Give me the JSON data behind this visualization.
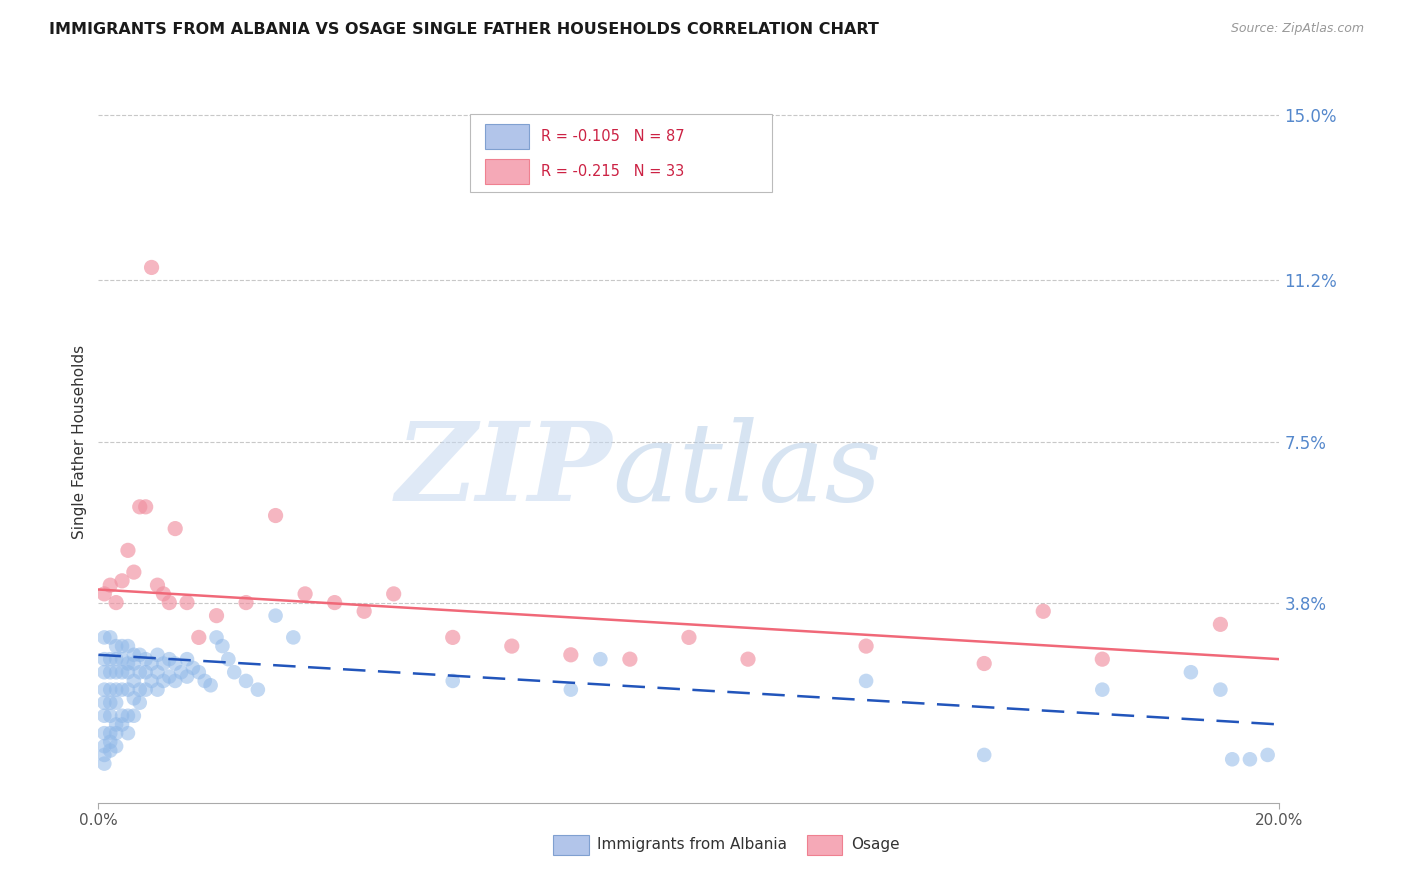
{
  "title": "IMMIGRANTS FROM ALBANIA VS OSAGE SINGLE FATHER HOUSEHOLDS CORRELATION CHART",
  "source": "Source: ZipAtlas.com",
  "ylabel": "Single Father Households",
  "x_min": 0.0,
  "x_max": 0.2,
  "y_min": -0.008,
  "y_max": 0.158,
  "y_ticks": [
    0.038,
    0.075,
    0.112,
    0.15
  ],
  "y_tick_labels": [
    "3.8%",
    "7.5%",
    "11.2%",
    "15.0%"
  ],
  "x_tick_labels": [
    "0.0%",
    "20.0%"
  ],
  "albania_color": "#90b8e8",
  "osage_color": "#f090a0",
  "albania_line_color": "#2255bb",
  "osage_line_color": "#f06878",
  "albania_line_start_y": 0.026,
  "albania_line_end_y": 0.01,
  "osage_line_start_y": 0.041,
  "osage_line_end_y": 0.025,
  "albania_x": [
    0.001,
    0.001,
    0.001,
    0.001,
    0.001,
    0.001,
    0.001,
    0.002,
    0.002,
    0.002,
    0.002,
    0.002,
    0.002,
    0.002,
    0.003,
    0.003,
    0.003,
    0.003,
    0.003,
    0.003,
    0.004,
    0.004,
    0.004,
    0.004,
    0.004,
    0.005,
    0.005,
    0.005,
    0.005,
    0.005,
    0.006,
    0.006,
    0.006,
    0.006,
    0.007,
    0.007,
    0.007,
    0.008,
    0.008,
    0.008,
    0.009,
    0.009,
    0.01,
    0.01,
    0.01,
    0.011,
    0.011,
    0.012,
    0.012,
    0.013,
    0.013,
    0.014,
    0.015,
    0.015,
    0.016,
    0.017,
    0.018,
    0.019,
    0.02,
    0.021,
    0.022,
    0.023,
    0.025,
    0.027,
    0.03,
    0.033,
    0.06,
    0.08,
    0.085,
    0.13,
    0.15,
    0.17,
    0.185,
    0.19,
    0.192,
    0.195,
    0.198,
    0.001,
    0.001,
    0.001,
    0.002,
    0.002,
    0.003,
    0.003,
    0.004,
    0.005,
    0.006,
    0.007
  ],
  "albania_y": [
    0.03,
    0.025,
    0.022,
    0.018,
    0.015,
    0.012,
    0.008,
    0.03,
    0.025,
    0.022,
    0.018,
    0.015,
    0.012,
    0.008,
    0.028,
    0.025,
    0.022,
    0.018,
    0.015,
    0.01,
    0.028,
    0.025,
    0.022,
    0.018,
    0.012,
    0.028,
    0.024,
    0.022,
    0.018,
    0.012,
    0.026,
    0.024,
    0.02,
    0.016,
    0.026,
    0.022,
    0.018,
    0.025,
    0.022,
    0.018,
    0.024,
    0.02,
    0.026,
    0.022,
    0.018,
    0.024,
    0.02,
    0.025,
    0.021,
    0.024,
    0.02,
    0.022,
    0.025,
    0.021,
    0.023,
    0.022,
    0.02,
    0.019,
    0.03,
    0.028,
    0.025,
    0.022,
    0.02,
    0.018,
    0.035,
    0.03,
    0.02,
    0.018,
    0.025,
    0.02,
    0.003,
    0.018,
    0.022,
    0.018,
    0.002,
    0.002,
    0.003,
    0.005,
    0.003,
    0.001,
    0.006,
    0.004,
    0.008,
    0.005,
    0.01,
    0.008,
    0.012,
    0.015
  ],
  "osage_x": [
    0.001,
    0.002,
    0.003,
    0.004,
    0.005,
    0.006,
    0.007,
    0.008,
    0.009,
    0.01,
    0.011,
    0.012,
    0.013,
    0.015,
    0.017,
    0.02,
    0.025,
    0.03,
    0.035,
    0.04,
    0.045,
    0.05,
    0.06,
    0.07,
    0.08,
    0.09,
    0.1,
    0.11,
    0.13,
    0.15,
    0.16,
    0.17,
    0.19
  ],
  "osage_y": [
    0.04,
    0.042,
    0.038,
    0.043,
    0.05,
    0.045,
    0.06,
    0.06,
    0.115,
    0.042,
    0.04,
    0.038,
    0.055,
    0.038,
    0.03,
    0.035,
    0.038,
    0.058,
    0.04,
    0.038,
    0.036,
    0.04,
    0.03,
    0.028,
    0.026,
    0.025,
    0.03,
    0.025,
    0.028,
    0.024,
    0.036,
    0.025,
    0.033
  ]
}
